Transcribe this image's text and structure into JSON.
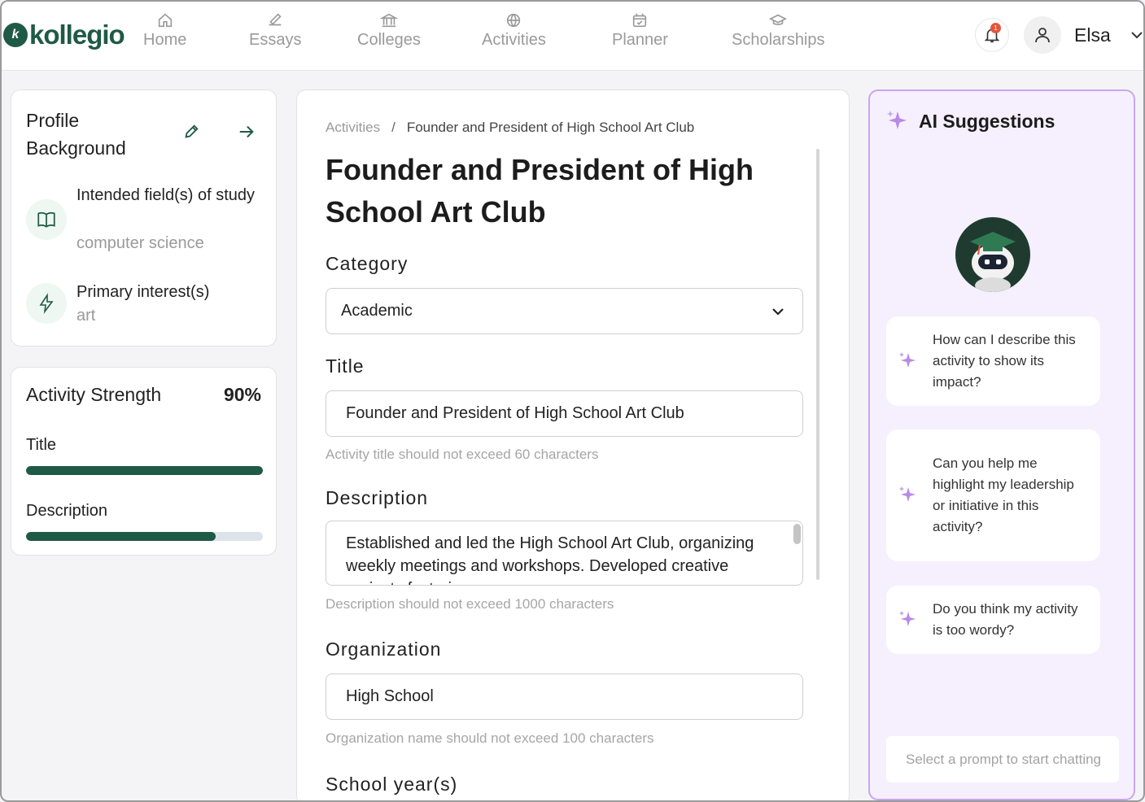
{
  "brand": {
    "name": "kollegio",
    "mark": "k",
    "color": "#1f5a46"
  },
  "nav": {
    "items": [
      {
        "label": "Home",
        "icon": "home-icon"
      },
      {
        "label": "Essays",
        "icon": "essays-icon"
      },
      {
        "label": "Colleges",
        "icon": "colleges-icon"
      },
      {
        "label": "Activities",
        "icon": "activities-icon"
      },
      {
        "label": "Planner",
        "icon": "planner-icon"
      },
      {
        "label": "Scholarships",
        "icon": "scholarships-icon"
      }
    ],
    "notification_count": "1",
    "user_name": "Elsa"
  },
  "profile": {
    "title": "Profile Background",
    "fields_label": "Intended field(s) of study",
    "fields_value": "computer science",
    "interest_label": "Primary interest(s)",
    "interest_value": "art"
  },
  "strength": {
    "title": "Activity Strength",
    "percent": "90%",
    "items": [
      {
        "label": "Title",
        "progress": 1.0
      },
      {
        "label": "Description",
        "progress": 0.8
      }
    ]
  },
  "main": {
    "breadcrumb_root": "Activities",
    "breadcrumb_sep": "/",
    "breadcrumb_current": "Founder and President of High School Art Club",
    "title": "Founder and President of High School Art Club",
    "category_label": "Category",
    "category_value": "Academic",
    "title_label": "Title",
    "title_value": "Founder and President of High School Art Club",
    "title_help": "Activity title should not exceed 60 characters",
    "description_label": "Description",
    "description_value": "Established and led the High School Art Club, organizing weekly meetings and workshops. Developed creative projects fostering a",
    "description_help": "Description should not exceed 1000 characters",
    "organization_label": "Organization",
    "organization_value": "High School",
    "organization_help": "Organization name should not exceed 100 characters",
    "school_year_label": "School year(s)"
  },
  "ai": {
    "title": "AI Suggestions",
    "prompts": [
      "How can I describe this activity to show its impact?",
      "Can you help me highlight my leadership or initiative in this activity?",
      "Do you think my activity is too wordy?"
    ],
    "input_placeholder": "Select a prompt to start chatting"
  }
}
